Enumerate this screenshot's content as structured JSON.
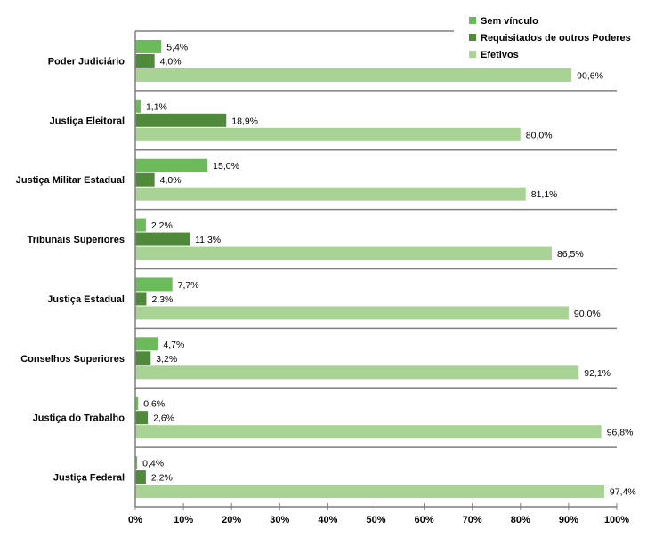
{
  "chart_data": {
    "type": "bar",
    "orientation": "horizontal",
    "categories": [
      "Poder Judiciário",
      "Justiça Eleitoral",
      "Justiça Militar Estadual",
      "Tribunais Superiores",
      "Justiça Estadual",
      "Conselhos Superiores",
      "Justiça do Trabalho",
      "Justiça Federal"
    ],
    "series": [
      {
        "name": "Sem vínculo",
        "color": "#6cbb5a",
        "values": [
          5.4,
          1.1,
          15.0,
          2.2,
          7.7,
          4.7,
          0.6,
          0.4
        ],
        "labels": [
          "5,4%",
          "1,1%",
          "15,0%",
          "2,2%",
          "7,7%",
          "4,7%",
          "0,6%",
          "0,4%"
        ]
      },
      {
        "name": "Requisitados de outros Poderes",
        "color": "#4f8a3a",
        "values": [
          4.0,
          18.9,
          4.0,
          11.3,
          2.3,
          3.2,
          2.6,
          2.2
        ],
        "labels": [
          "4,0%",
          "18,9%",
          "4,0%",
          "11,3%",
          "2,3%",
          "3,2%",
          "2,6%",
          "2,2%"
        ]
      },
      {
        "name": "Efetivos",
        "color": "#a8d395",
        "values": [
          90.6,
          80.0,
          81.1,
          86.5,
          90.0,
          92.1,
          96.8,
          97.4
        ],
        "labels": [
          "90,6%",
          "80,0%",
          "81,1%",
          "86,5%",
          "90,0%",
          "92,1%",
          "96,8%",
          "97,4%"
        ]
      }
    ],
    "xlim": [
      0,
      100
    ],
    "xticks": [
      "0%",
      "10%",
      "20%",
      "30%",
      "40%",
      "50%",
      "60%",
      "70%",
      "80%",
      "90%",
      "100%"
    ],
    "title": "",
    "xlabel": "",
    "ylabel": "",
    "legend_position": "top-right",
    "grid": false
  }
}
